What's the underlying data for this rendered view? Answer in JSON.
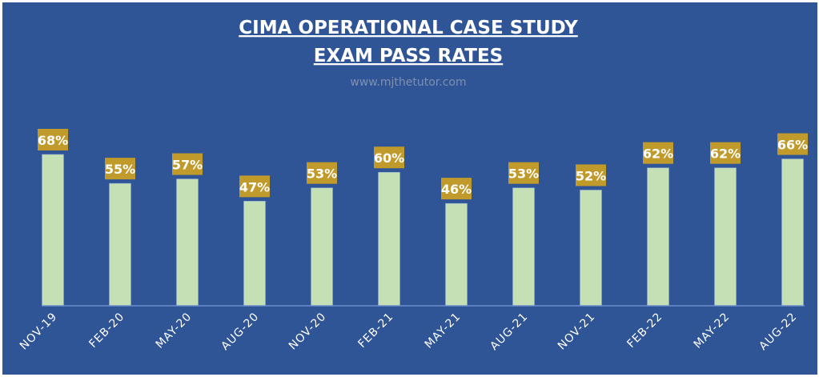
{
  "chart_data": {
    "type": "bar",
    "title": "CIMA OPERATIONAL CASE STUDY",
    "subtitle": "EXAM PASS RATES",
    "watermark": "www.mjthetutor.com",
    "categories": [
      "NOV-19",
      "FEB-20",
      "MAY-20",
      "AUG-20",
      "NOV-20",
      "FEB-21",
      "MAY-21",
      "AUG-21",
      "NOV-21",
      "FEB-22",
      "MAY-22",
      "AUG-22"
    ],
    "values": [
      68,
      55,
      57,
      47,
      53,
      60,
      46,
      53,
      52,
      62,
      62,
      66
    ],
    "data_labels": [
      "68%",
      "55%",
      "57%",
      "47%",
      "53%",
      "60%",
      "46%",
      "53%",
      "52%",
      "62%",
      "62%",
      "66%"
    ],
    "unit": "%",
    "xlabel": "",
    "ylabel": "",
    "ylim": [
      0,
      80
    ],
    "grid": false,
    "legend": "none",
    "colors": {
      "background": "#2F5597",
      "bar": "#C5E0B4",
      "label_box": "#C09A2B",
      "axis": "#6F8FCF"
    }
  }
}
